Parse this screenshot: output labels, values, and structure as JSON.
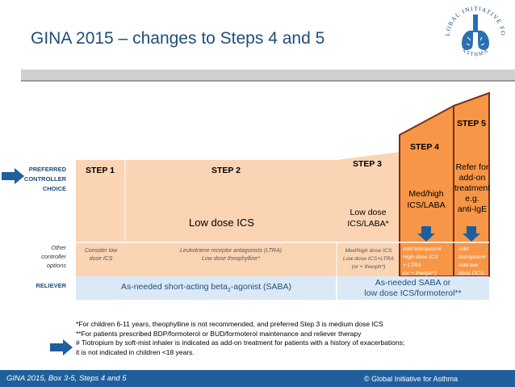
{
  "title": "GINA 2015 – changes to Steps 4 and 5",
  "logo": {
    "ring_text": "GLOBAL INITIATIVE FOR",
    "bottom_text": "ASTHMA"
  },
  "rows": {
    "preferred": [
      "PREFERRED",
      "CONTROLLER",
      "CHOICE"
    ],
    "other": [
      "Other",
      "controller",
      "options"
    ],
    "reliever": "RELIEVER"
  },
  "steps": [
    {
      "title": "STEP 1",
      "preferred": "",
      "other": [
        "Consider low",
        "dose ICS"
      ]
    },
    {
      "title": "STEP 2",
      "preferred": "Low dose ICS",
      "other": [
        "Leukotriene receptor antagonists (LTRA)",
        "Low dose theophylline*"
      ]
    },
    {
      "title": "STEP 3",
      "preferred": [
        "Low dose",
        "ICS/LABA*"
      ],
      "other": [
        "Med/high dose ICS",
        "Low dose ICS+LTRA",
        "(or + theoph*)"
      ]
    },
    {
      "title": "STEP 4",
      "preferred": [
        "Med/high",
        "ICS/LABA"
      ],
      "other": [
        "Add tiotropium#",
        "High dose ICS",
        "+ LTRA",
        "(or + theoph*)"
      ]
    },
    {
      "title": "STEP 5",
      "preferred": [
        "Refer for",
        "add-on",
        "treatment",
        "e.g.",
        "anti-IgE"
      ],
      "other": [
        "Add",
        "tiotropium#",
        "Add low",
        "dose OCS"
      ]
    }
  ],
  "reliever": {
    "left_pre": "As-needed short-acting beta",
    "left_sub": "2",
    "left_post": "-agonist (SABA)",
    "right": [
      "As-needed SABA or",
      "low dose ICS/formoterol**"
    ]
  },
  "footnotes": [
    "*For children 6-11 years, theophylline  is not recommended, and preferred Step 3 is medium dose ICS",
    "**For patients prescribed BDP/formoterol or BUD/formoterol maintenance and reliever therapy",
    "# Tiotropium by soft-mist inhaler is indicated as add-on treatment for patients with a history of exacerbations;",
    "it is not indicated in children <18 years."
  ],
  "footer": {
    "left": "GINA 2015, Box 3-5, Steps 4 and 5",
    "right": "© Global Initiative for Asthma"
  },
  "colors": {
    "title": "#1f4e79",
    "step_light": "#fbd4b4",
    "step_dark": "#f79646",
    "step_border": "#7a2e1a",
    "reliever_bg": "#dbe9f6",
    "arrow": "#1f5f9c",
    "footer_bg": "#1f5f9c"
  }
}
